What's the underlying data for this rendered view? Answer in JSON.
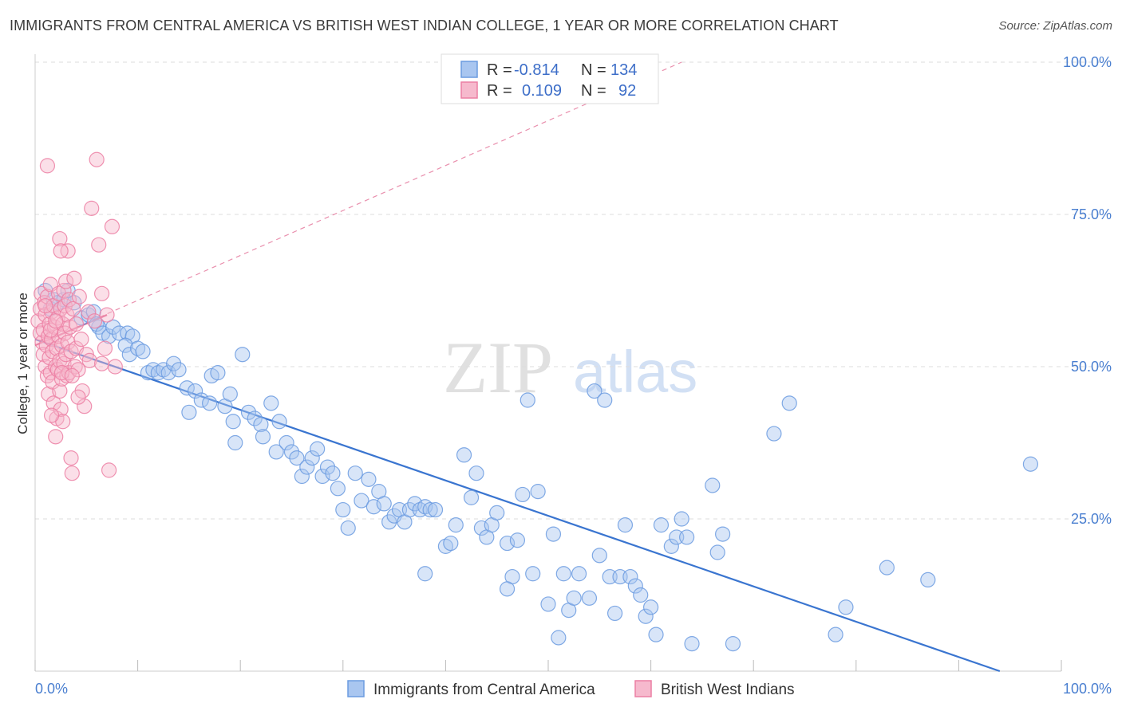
{
  "title": "IMMIGRANTS FROM CENTRAL AMERICA VS BRITISH WEST INDIAN COLLEGE, 1 YEAR OR MORE CORRELATION CHART",
  "source": "Source: ZipAtlas.com",
  "watermark": {
    "zip": "ZIP",
    "atlas": "atlas"
  },
  "colors": {
    "blue": "#6b9be0",
    "blue_fill": "#a9c6f0",
    "pink": "#ec7fa3",
    "pink_fill": "#f6b9cd",
    "trend_blue": "#3a75d0",
    "trend_pink": "#e0608a",
    "axis_text": "#4a7fd0",
    "grid": "#dddddd"
  },
  "legend_top": {
    "rows": [
      {
        "r_label": "R =",
        "r_value": "-0.814",
        "n_label": "N =",
        "n_value": "134",
        "color": "blue"
      },
      {
        "r_label": "R =",
        "r_value": "0.109",
        "n_label": "N =",
        "n_value": "92",
        "color": "pink"
      }
    ]
  },
  "legend_bottom": [
    "Immigrants from Central America",
    "British West Indians"
  ],
  "chart_data": {
    "type": "scatter",
    "xlabel": "",
    "ylabel": "College, 1 year or more",
    "xlim": [
      0,
      100
    ],
    "ylim": [
      0,
      100
    ],
    "x_tick_labels": [
      "0.0%",
      "100.0%"
    ],
    "y_tick_labels": [
      "25.0%",
      "50.0%",
      "75.0%",
      "100.0%"
    ],
    "y_ticks": [
      25,
      50,
      75,
      100
    ],
    "grid": true,
    "series": [
      {
        "name": "Immigrants from Central America",
        "color": "blue",
        "trend": {
          "x": [
            0,
            94
          ],
          "y": [
            54.5,
            0
          ]
        },
        "points": [
          [
            1.0,
            62.5
          ],
          [
            1.5,
            59.5
          ],
          [
            1.8,
            61.0
          ],
          [
            2.2,
            60.5
          ],
          [
            2.8,
            61.0
          ],
          [
            3.2,
            62.5
          ],
          [
            3.8,
            60.5
          ],
          [
            4.5,
            58.0
          ],
          [
            5.2,
            58.5
          ],
          [
            5.7,
            59.0
          ],
          [
            6.2,
            56.5
          ],
          [
            6.0,
            57.0
          ],
          [
            6.6,
            55.5
          ],
          [
            7.2,
            55.0
          ],
          [
            7.6,
            56.5
          ],
          [
            8.2,
            55.5
          ],
          [
            9.0,
            55.5
          ],
          [
            9.5,
            55.0
          ],
          [
            8.8,
            53.5
          ],
          [
            9.2,
            52.0
          ],
          [
            10.0,
            53.0
          ],
          [
            10.5,
            52.5
          ],
          [
            11.0,
            49.0
          ],
          [
            11.5,
            49.5
          ],
          [
            12.0,
            49.0
          ],
          [
            12.5,
            49.5
          ],
          [
            13.0,
            49.0
          ],
          [
            13.5,
            50.5
          ],
          [
            14.0,
            49.5
          ],
          [
            14.8,
            46.5
          ],
          [
            15.6,
            46.0
          ],
          [
            15.0,
            42.5
          ],
          [
            16.2,
            44.5
          ],
          [
            17.0,
            44.0
          ],
          [
            17.2,
            48.5
          ],
          [
            17.8,
            49.0
          ],
          [
            18.5,
            43.5
          ],
          [
            19.3,
            41.0
          ],
          [
            19.0,
            45.5
          ],
          [
            19.5,
            37.5
          ],
          [
            20.2,
            52.0
          ],
          [
            20.8,
            42.5
          ],
          [
            21.4,
            41.5
          ],
          [
            22.0,
            40.5
          ],
          [
            22.2,
            38.5
          ],
          [
            23.0,
            44.0
          ],
          [
            23.5,
            36.0
          ],
          [
            23.8,
            41.0
          ],
          [
            24.5,
            37.5
          ],
          [
            25.0,
            36.0
          ],
          [
            25.5,
            35.0
          ],
          [
            26.0,
            32.0
          ],
          [
            26.5,
            33.5
          ],
          [
            27.0,
            35.0
          ],
          [
            27.5,
            36.5
          ],
          [
            28.0,
            32.0
          ],
          [
            28.5,
            33.5
          ],
          [
            29.0,
            32.5
          ],
          [
            29.5,
            30.0
          ],
          [
            30.0,
            26.5
          ],
          [
            30.5,
            23.5
          ],
          [
            31.2,
            32.5
          ],
          [
            31.8,
            28.0
          ],
          [
            32.5,
            31.5
          ],
          [
            33.0,
            27.0
          ],
          [
            33.5,
            29.5
          ],
          [
            34.0,
            27.5
          ],
          [
            34.5,
            24.5
          ],
          [
            35.0,
            25.5
          ],
          [
            35.5,
            26.5
          ],
          [
            36.0,
            24.5
          ],
          [
            36.5,
            26.5
          ],
          [
            37.0,
            27.5
          ],
          [
            37.5,
            26.5
          ],
          [
            38.0,
            27.0
          ],
          [
            38.5,
            26.5
          ],
          [
            39.0,
            26.5
          ],
          [
            40.0,
            20.5
          ],
          [
            40.5,
            21.0
          ],
          [
            41.0,
            24.0
          ],
          [
            41.8,
            35.5
          ],
          [
            42.5,
            28.5
          ],
          [
            43.0,
            32.5
          ],
          [
            43.5,
            23.5
          ],
          [
            44.0,
            22.0
          ],
          [
            44.5,
            24.0
          ],
          [
            45.0,
            26.0
          ],
          [
            46.0,
            21.0
          ],
          [
            46.5,
            15.5
          ],
          [
            47.0,
            21.5
          ],
          [
            47.5,
            29.0
          ],
          [
            48.0,
            44.5
          ],
          [
            48.5,
            16.0
          ],
          [
            49.0,
            29.5
          ],
          [
            50.0,
            11.0
          ],
          [
            50.5,
            22.5
          ],
          [
            51.0,
            5.5
          ],
          [
            51.5,
            16.0
          ],
          [
            52.0,
            10.0
          ],
          [
            52.5,
            12.0
          ],
          [
            53.0,
            16.0
          ],
          [
            54.0,
            12.0
          ],
          [
            54.5,
            46.0
          ],
          [
            55.0,
            19.0
          ],
          [
            55.5,
            44.5
          ],
          [
            56.0,
            15.5
          ],
          [
            56.5,
            9.5
          ],
          [
            57.0,
            15.5
          ],
          [
            57.5,
            24.0
          ],
          [
            58.0,
            15.5
          ],
          [
            58.5,
            14.0
          ],
          [
            59.0,
            12.5
          ],
          [
            59.5,
            9.0
          ],
          [
            60.0,
            10.5
          ],
          [
            60.5,
            6.0
          ],
          [
            61.0,
            24.0
          ],
          [
            62.0,
            20.5
          ],
          [
            62.5,
            22.0
          ],
          [
            63.0,
            25.0
          ],
          [
            63.5,
            22.0
          ],
          [
            64.0,
            4.5
          ],
          [
            66.0,
            30.5
          ],
          [
            66.5,
            19.5
          ],
          [
            67.0,
            22.5
          ],
          [
            72.0,
            39.0
          ],
          [
            73.5,
            44.0
          ],
          [
            78.0,
            6.0
          ],
          [
            79.0,
            10.5
          ],
          [
            83.0,
            17.0
          ],
          [
            87.0,
            15.0
          ],
          [
            97.0,
            34.0
          ],
          [
            68.0,
            4.5
          ],
          [
            46.0,
            13.5
          ],
          [
            38.0,
            16.0
          ]
        ]
      },
      {
        "name": "British West Indians",
        "color": "pink",
        "trend": {
          "x": [
            0,
            7
          ],
          "y": [
            53.5,
            58.5
          ]
        },
        "trend_ext": {
          "x": [
            0,
            63
          ],
          "y": [
            53.5,
            100
          ]
        },
        "points": [
          [
            0.3,
            57.5
          ],
          [
            0.5,
            55.5
          ],
          [
            0.5,
            59.5
          ],
          [
            0.6,
            62.0
          ],
          [
            0.7,
            54.0
          ],
          [
            0.8,
            56.0
          ],
          [
            0.8,
            52.0
          ],
          [
            0.9,
            60.5
          ],
          [
            1.0,
            50.0
          ],
          [
            1.0,
            58.5
          ],
          [
            1.1,
            53.5
          ],
          [
            1.2,
            61.5
          ],
          [
            1.2,
            48.5
          ],
          [
            1.3,
            55.0
          ],
          [
            1.3,
            45.5
          ],
          [
            1.4,
            57.0
          ],
          [
            1.4,
            51.5
          ],
          [
            1.5,
            49.0
          ],
          [
            1.5,
            63.5
          ],
          [
            1.6,
            59.0
          ],
          [
            1.6,
            54.5
          ],
          [
            1.7,
            47.5
          ],
          [
            1.7,
            52.5
          ],
          [
            1.8,
            44.0
          ],
          [
            1.8,
            60.0
          ],
          [
            1.9,
            56.5
          ],
          [
            2.0,
            50.0
          ],
          [
            2.0,
            38.5
          ],
          [
            2.1,
            53.0
          ],
          [
            2.1,
            41.5
          ],
          [
            2.2,
            58.0
          ],
          [
            2.2,
            49.5
          ],
          [
            2.3,
            62.0
          ],
          [
            2.3,
            55.0
          ],
          [
            2.4,
            46.0
          ],
          [
            2.4,
            51.0
          ],
          [
            2.5,
            59.5
          ],
          [
            2.5,
            43.0
          ],
          [
            2.6,
            53.5
          ],
          [
            2.6,
            48.0
          ],
          [
            2.7,
            57.0
          ],
          [
            2.7,
            41.0
          ],
          [
            2.8,
            62.5
          ],
          [
            2.8,
            50.5
          ],
          [
            2.9,
            55.5
          ],
          [
            2.9,
            60.0
          ],
          [
            3.0,
            52.0
          ],
          [
            3.0,
            64.0
          ],
          [
            3.1,
            48.5
          ],
          [
            3.1,
            58.5
          ],
          [
            3.2,
            54.0
          ],
          [
            3.2,
            69.0
          ],
          [
            3.3,
            49.0
          ],
          [
            3.3,
            61.0
          ],
          [
            3.4,
            56.5
          ],
          [
            3.5,
            52.5
          ],
          [
            3.5,
            35.0
          ],
          [
            3.6,
            32.5
          ],
          [
            3.7,
            59.5
          ],
          [
            3.8,
            64.5
          ],
          [
            3.9,
            50.0
          ],
          [
            4.0,
            57.0
          ],
          [
            4.0,
            53.0
          ],
          [
            4.2,
            49.5
          ],
          [
            4.3,
            61.5
          ],
          [
            4.5,
            54.5
          ],
          [
            4.6,
            46.0
          ],
          [
            4.8,
            43.5
          ],
          [
            5.0,
            52.0
          ],
          [
            5.2,
            59.0
          ],
          [
            5.5,
            76.0
          ],
          [
            5.8,
            57.5
          ],
          [
            6.0,
            84.0
          ],
          [
            6.2,
            70.0
          ],
          [
            6.5,
            62.0
          ],
          [
            6.8,
            53.0
          ],
          [
            7.0,
            58.5
          ],
          [
            7.2,
            33.0
          ],
          [
            7.5,
            73.0
          ],
          [
            7.8,
            50.0
          ],
          [
            1.2,
            83.0
          ],
          [
            2.4,
            71.0
          ],
          [
            2.5,
            69.0
          ],
          [
            1.5,
            56.0
          ],
          [
            2.0,
            57.5
          ],
          [
            1.0,
            60.0
          ],
          [
            2.6,
            49.0
          ],
          [
            3.6,
            48.5
          ],
          [
            5.3,
            51.0
          ],
          [
            6.5,
            50.5
          ],
          [
            1.6,
            42.0
          ],
          [
            4.2,
            45.0
          ]
        ]
      }
    ]
  }
}
